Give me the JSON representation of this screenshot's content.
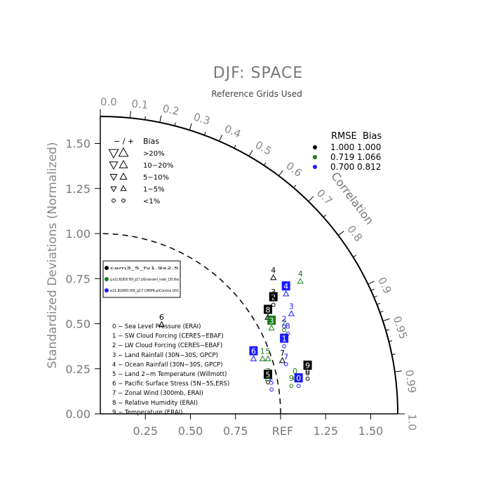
{
  "chart_data": {
    "type": "scatter",
    "subtype": "taylor-diagram",
    "title": "DJF: SPACE",
    "subtitle": "Reference Grids Used",
    "ylabel": "Standardized Deviations (Normalized)",
    "ref_label": "REF",
    "correlation_label": "Correlation",
    "ylim": [
      0,
      1.65
    ],
    "xlim": [
      0,
      1.65
    ],
    "y_ticks": [
      "0.00",
      "0.25",
      "0.50",
      "0.75",
      "1.00",
      "1.25",
      "1.50"
    ],
    "x_ticks": [
      "0.25",
      "0.50",
      "0.75",
      "1.25",
      "1.50"
    ],
    "correlation_ticks": [
      "0.0",
      "0.1",
      "0.2",
      "0.3",
      "0.4",
      "0.5",
      "0.6",
      "0.7",
      "0.8",
      "0.9",
      "0.95",
      "0.99",
      "1.0"
    ],
    "bias_legend": {
      "header_symbols": "− / +",
      "header_label": "Bias",
      "rows": [
        {
          "down": "▽",
          "up": "△",
          "label": ">20%"
        },
        {
          "down": "▽",
          "up": "△",
          "label": "10−20%"
        },
        {
          "down": "▽",
          "up": "△",
          "label": "5−10%"
        },
        {
          "down": "▽",
          "up": "△",
          "label": "1−5%"
        },
        {
          "down": "○",
          "up": "○",
          "label": "<1%"
        }
      ]
    },
    "rmse_legend": {
      "rmse_header": "RMSE",
      "bias_header": "Bias",
      "rows": [
        {
          "color": "#000000",
          "rmse": "1.000",
          "bias": "1.000"
        },
        {
          "color": "#1a7a1a",
          "rmse": "0.719",
          "bias": "1.066"
        },
        {
          "color": "#1a1aff",
          "rmse": "0.700",
          "bias": "0.812"
        }
      ]
    },
    "case_legend": [
      {
        "color": "#000000",
        "name": "cam3_5_fv1.9x2.5"
      },
      {
        "color": "#1a7a1a",
        "name": "g.e21.B1850.f09_g17.LIGtransient_node_135.6ka"
      },
      {
        "color": "#1a1aff",
        "name": "e21.B1850.f09_g17.CMIP6-piControl.001"
      }
    ],
    "variables": [
      "0 − Sea Level Pressure (ERAI)",
      "1 − SW Cloud Forcing (CERES−EBAF)",
      "2 − LW Cloud Forcing (CERES−EBAF)",
      "3 − Land Rainfall (30N−30S, GPCP)",
      "4 − Ocean Rainfall (30N−30S, GPCP)",
      "5 − Land 2−m Temperature (Willmott)",
      "6 − Pacific Surface Stress (5N−5S,ERS)",
      "7 − Zonal Wind (300mb, ERAI)",
      "8 − Relative Humidity (ERAI)",
      "9 − Temperature (ERAI)"
    ],
    "series": [
      {
        "name": "cam3_5_fv1.9x2.5",
        "color": "#000000",
        "points": [
          {
            "label": "0",
            "x": 1.15,
            "y": 0.23,
            "sym": "circle",
            "box": false
          },
          {
            "label": "1",
            "x": 0.93,
            "y": 0.57,
            "sym": "up",
            "box": false
          },
          {
            "label": "2",
            "x": 0.96,
            "y": 0.64,
            "sym": "circle",
            "box": true
          },
          {
            "label": "3",
            "x": 0.96,
            "y": 0.67,
            "sym": "circle",
            "box": false
          },
          {
            "label": "4",
            "x": 0.96,
            "y": 0.79,
            "sym": "up",
            "box": false
          },
          {
            "label": "5",
            "x": 0.93,
            "y": 0.21,
            "sym": "circle",
            "box": true
          },
          {
            "label": "6",
            "x": 0.34,
            "y": 0.53,
            "sym": "up",
            "box": false
          },
          {
            "label": "7",
            "x": 1.01,
            "y": 0.33,
            "sym": "up",
            "box": false
          },
          {
            "label": "8",
            "x": 0.93,
            "y": 0.57,
            "sym": "up",
            "box": true
          },
          {
            "label": "9",
            "x": 1.15,
            "y": 0.26,
            "sym": "circle",
            "box": true
          }
        ]
      },
      {
        "name": "g.e21.B1850.f09_g17.LIGtransient_node_135.6ka",
        "color": "#1a7a1a",
        "points": [
          {
            "label": "0",
            "x": 1.08,
            "y": 0.23,
            "sym": "circle",
            "box": false
          },
          {
            "label": "1",
            "x": 0.9,
            "y": 0.34,
            "sym": "up",
            "box": false
          },
          {
            "label": "2",
            "x": 1.02,
            "y": 0.5,
            "sym": "circle",
            "box": false
          },
          {
            "label": "3",
            "x": 0.95,
            "y": 0.51,
            "sym": "up",
            "box": true
          },
          {
            "label": "4",
            "x": 1.11,
            "y": 0.77,
            "sym": "up",
            "box": false
          },
          {
            "label": "5",
            "x": 0.93,
            "y": 0.34,
            "sym": "up",
            "box": false
          },
          {
            "label": "7",
            "x": 0.93,
            "y": 0.23,
            "sym": "up",
            "box": false
          },
          {
            "label": "9",
            "x": 1.06,
            "y": 0.19,
            "sym": "circle",
            "box": false
          }
        ]
      },
      {
        "name": "e21.B1850.f09_g17.CMIP6-piControl.001",
        "color": "#1a1aff",
        "points": [
          {
            "label": "0",
            "x": 1.1,
            "y": 0.19,
            "sym": "circle",
            "box": true
          },
          {
            "label": "1",
            "x": 1.02,
            "y": 0.41,
            "sym": "circle",
            "box": true
          },
          {
            "label": "2",
            "x": 1.02,
            "y": 0.52,
            "sym": "circle",
            "box": false
          },
          {
            "label": "3",
            "x": 1.06,
            "y": 0.59,
            "sym": "up",
            "box": false
          },
          {
            "label": "4",
            "x": 1.03,
            "y": 0.7,
            "sym": "up",
            "box": true
          },
          {
            "label": "5",
            "x": 0.95,
            "y": 0.17,
            "sym": "circle",
            "box": false
          },
          {
            "label": "6",
            "x": 0.85,
            "y": 0.34,
            "sym": "up",
            "box": true
          },
          {
            "label": "7",
            "x": 1.03,
            "y": 0.31,
            "sym": "circle",
            "box": false
          },
          {
            "label": "8",
            "x": 1.04,
            "y": 0.48,
            "sym": "circle",
            "box": false
          }
        ]
      }
    ]
  }
}
